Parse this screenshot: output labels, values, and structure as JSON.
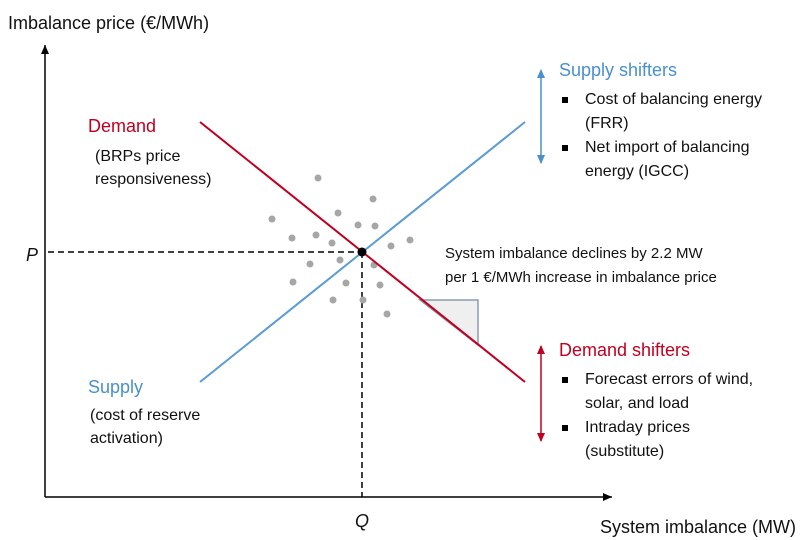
{
  "axes": {
    "y_label": "Imbalance price (€/MWh)",
    "x_label": "System imbalance (MW)",
    "p_label": "P",
    "q_label": "Q"
  },
  "demand": {
    "title": "Demand",
    "note": [
      "(BRPs price",
      "responsiveness)"
    ]
  },
  "supply": {
    "title": "Supply",
    "note": [
      "(cost of reserve",
      "activation)"
    ]
  },
  "supply_shifters": {
    "title": "Supply shifters",
    "items": [
      [
        "Cost of balancing energy",
        "(FRR)"
      ],
      [
        "Net import of balancing",
        "energy (IGCC)"
      ]
    ]
  },
  "demand_shifters": {
    "title": "Demand shifters",
    "items": [
      [
        "Forecast errors of wind,",
        "solar, and load"
      ],
      [
        "Intraday prices",
        "(substitute)"
      ]
    ]
  },
  "annotation": [
    "System imbalance declines by 2.2 MW",
    "per 1 €/MWh increase in imbalance price"
  ]
}
